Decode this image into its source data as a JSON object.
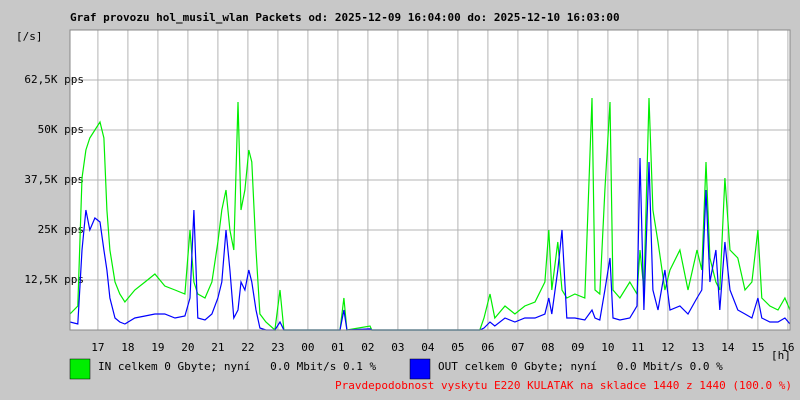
{
  "chart_data": {
    "type": "line",
    "title": "Graf provozu hol_musil_wlan Packets od: 2025-12-09 16:04:00 do: 2025-12-10 16:03:00",
    "y_unit": "[/s]",
    "x_unit": "[h]",
    "footer": "Pravdepodobnost vyskytu E220 KULATAK na skladce 1440 z 1440 (100.0 %)",
    "xlim": [
      16.07,
      40.07
    ],
    "ylim": [
      0,
      75000
    ],
    "grid": true,
    "xticks": [
      17,
      18,
      19,
      20,
      21,
      22,
      23,
      {
        "value": 24,
        "label": "00"
      },
      {
        "value": 25,
        "label": "01"
      },
      {
        "value": 26,
        "label": "02"
      },
      {
        "value": 27,
        "label": "03"
      },
      {
        "value": 28,
        "label": "04"
      },
      {
        "value": 29,
        "label": "05"
      },
      {
        "value": 30,
        "label": "06"
      },
      {
        "value": 31,
        "label": "07"
      },
      {
        "value": 32,
        "label": "08"
      },
      {
        "value": 33,
        "label": "09"
      },
      {
        "value": 34,
        "label": "10"
      },
      {
        "value": 35,
        "label": "11"
      },
      {
        "value": 36,
        "label": "12"
      },
      {
        "value": 37,
        "label": "13"
      },
      {
        "value": 38,
        "label": "14"
      },
      {
        "value": 39,
        "label": "15"
      },
      {
        "value": 40,
        "label": "16"
      }
    ],
    "yticks": [
      {
        "value": 12500,
        "label": "12,5K pps"
      },
      {
        "value": 25000,
        "label": "25K pps"
      },
      {
        "value": 37500,
        "label": "37,5K pps"
      },
      {
        "value": 50000,
        "label": "50K pps"
      },
      {
        "value": 62500,
        "label": "62,5K pps"
      }
    ],
    "x": [
      16.07,
      16.33,
      16.47,
      16.6,
      16.73,
      16.9,
      17.07,
      17.2,
      17.3,
      17.4,
      17.57,
      17.73,
      17.9,
      18.23,
      18.57,
      18.9,
      19.23,
      19.57,
      19.9,
      20.07,
      20.2,
      20.33,
      20.57,
      20.8,
      21.0,
      21.13,
      21.27,
      21.4,
      21.53,
      21.67,
      21.77,
      21.9,
      22.03,
      22.13,
      22.27,
      22.4,
      22.6,
      22.9,
      23.07,
      23.2,
      25.07,
      25.2,
      25.3,
      26.07,
      26.13,
      29.73,
      29.87,
      30.07,
      30.23,
      30.57,
      30.9,
      31.23,
      31.57,
      31.9,
      32.03,
      32.13,
      32.33,
      32.47,
      32.63,
      32.9,
      33.23,
      33.47,
      33.57,
      33.73,
      33.9,
      34.07,
      34.17,
      34.4,
      34.73,
      34.97,
      35.07,
      35.2,
      35.37,
      35.5,
      35.67,
      35.9,
      36.07,
      36.4,
      36.67,
      36.97,
      37.13,
      37.27,
      37.4,
      37.6,
      37.73,
      37.9,
      38.07,
      38.33,
      38.57,
      38.8,
      39.0,
      39.13,
      39.4,
      39.67,
      39.9,
      40.07
    ],
    "series": [
      {
        "name": "IN celkem 0 Gbyte; nyní   0.0 Mbit/s 0.1 %",
        "color": "#00ee00",
        "values": [
          4000,
          6000,
          38000,
          45000,
          48000,
          50000,
          52000,
          48000,
          30000,
          20000,
          12000,
          9000,
          7000,
          10000,
          12000,
          14000,
          11000,
          10000,
          9000,
          25000,
          12000,
          9000,
          8000,
          12000,
          22000,
          30000,
          35000,
          25000,
          20000,
          57000,
          30000,
          35000,
          45000,
          42000,
          20000,
          4000,
          2000,
          0,
          10000,
          0,
          0,
          8000,
          0,
          1000,
          0,
          0,
          3000,
          9000,
          3000,
          6000,
          4000,
          6000,
          7000,
          12000,
          25000,
          10000,
          22000,
          10000,
          8000,
          9000,
          8000,
          58000,
          10000,
          9000,
          35000,
          57000,
          10000,
          8000,
          12000,
          9000,
          20000,
          10000,
          58000,
          30000,
          22000,
          10000,
          15000,
          20000,
          10000,
          20000,
          15000,
          42000,
          18000,
          12000,
          10000,
          38000,
          20000,
          18000,
          10000,
          12000,
          25000,
          8000,
          6000,
          5000,
          8000,
          5000
        ]
      },
      {
        "name": "OUT celkem 0 Gbyte; nyní   0.0 Mbit/s 0.0 %",
        "color": "#0000ff",
        "values": [
          2000,
          1500,
          20000,
          30000,
          25000,
          28000,
          27000,
          20000,
          15000,
          8000,
          3000,
          2000,
          1500,
          3000,
          3500,
          4000,
          4000,
          3000,
          3500,
          8000,
          30000,
          3000,
          2500,
          4000,
          8000,
          12000,
          25000,
          15000,
          3000,
          5000,
          12000,
          10000,
          15000,
          12000,
          5000,
          500,
          0,
          0,
          2000,
          0,
          0,
          5000,
          0,
          300,
          0,
          0,
          500,
          2000,
          1000,
          3000,
          2000,
          3000,
          3000,
          4000,
          8000,
          4000,
          15000,
          25000,
          3000,
          3000,
          2500,
          5000,
          3000,
          2500,
          10000,
          18000,
          3000,
          2500,
          3000,
          6000,
          43000,
          5000,
          42000,
          10000,
          5000,
          15000,
          5000,
          6000,
          4000,
          8000,
          10000,
          35000,
          12000,
          20000,
          5000,
          22000,
          10000,
          5000,
          4000,
          3000,
          8000,
          3000,
          2000,
          2000,
          3000,
          1500
        ]
      }
    ]
  }
}
